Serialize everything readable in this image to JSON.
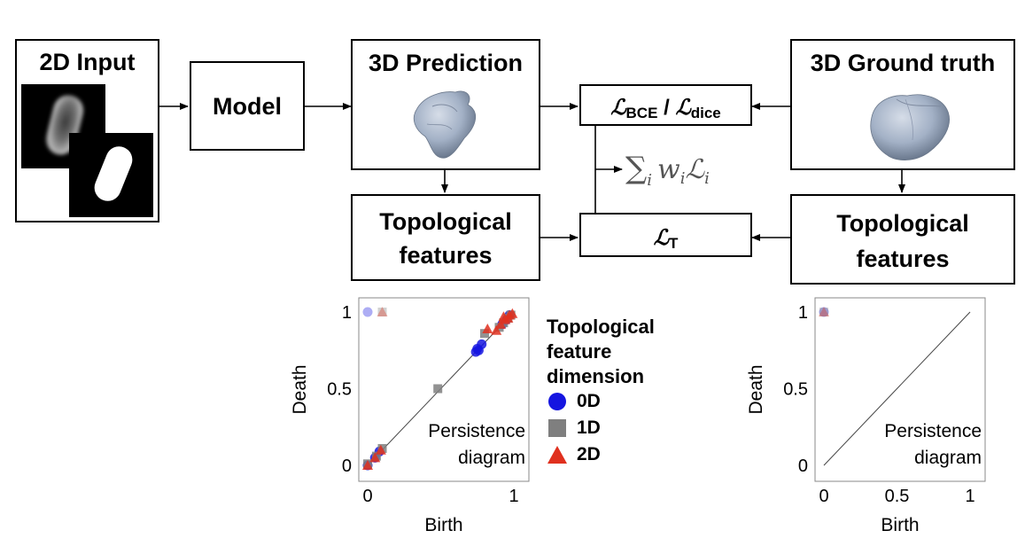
{
  "input": {
    "title": "2D Input"
  },
  "model": {
    "label": "Model"
  },
  "prediction": {
    "title": "3D Prediction"
  },
  "ground_truth": {
    "title": "3D Ground truth"
  },
  "loss_bce_dice": {
    "bce_symbol": "ℒ",
    "bce_sub": "BCE",
    "sep": " / ",
    "dice_symbol": "ℒ",
    "dice_sub": "dice"
  },
  "loss_topo": {
    "symbol": "ℒ",
    "sub": "T"
  },
  "sum_formula": {
    "sigma": "∑",
    "sub_i": "i",
    "w": "w",
    "w_sub": "i",
    "L": "ℒ",
    "L_sub": "i"
  },
  "topo_left": {
    "line1": "Topological",
    "line2": "features"
  },
  "topo_right": {
    "line1": "Topological",
    "line2": "features"
  },
  "legend": {
    "title_line1": "Topological",
    "title_line2": "feature",
    "title_line3": "dimension",
    "items": [
      {
        "label": "0D",
        "color": "#1515e0",
        "shape": "circle"
      },
      {
        "label": "1D",
        "color": "#7f7f7f",
        "shape": "square"
      },
      {
        "label": "2D",
        "color": "#e0301e",
        "shape": "triangle"
      }
    ]
  },
  "chart_data": [
    {
      "type": "scatter",
      "xlabel": "Birth",
      "ylabel": "Death",
      "annotation_line1": "Persistence",
      "annotation_line2": "diagram",
      "xticks": [
        "0",
        "1"
      ],
      "yticks": [
        "0",
        "0.5",
        "1"
      ],
      "xlim": [
        0,
        1
      ],
      "ylim": [
        0,
        1
      ],
      "diagonal": true,
      "series": [
        {
          "name": "0D",
          "color": "#1515e0",
          "shape": "circle",
          "x": [
            0.0,
            0.0,
            0.05,
            0.08,
            0.74,
            0.75,
            0.76,
            0.78,
            0.92,
            0.95,
            0.97
          ],
          "y": [
            1.0,
            0.0,
            0.05,
            0.09,
            0.74,
            0.76,
            0.75,
            0.79,
            0.92,
            0.95,
            0.98
          ]
        },
        {
          "name": "1D",
          "color": "#7f7f7f",
          "shape": "square",
          "x": [
            0.1,
            0.48,
            0.0,
            0.06,
            0.1,
            0.8,
            0.9,
            0.93,
            0.96,
            0.98
          ],
          "y": [
            1.0,
            0.5,
            0.01,
            0.06,
            0.11,
            0.86,
            0.9,
            0.93,
            0.96,
            0.98
          ]
        },
        {
          "name": "2D",
          "color": "#e0301e",
          "shape": "triangle",
          "x": [
            0.1,
            0.82,
            0.0,
            0.05,
            0.09,
            0.88,
            0.91,
            0.94,
            0.96,
            0.97,
            0.99,
            0.93
          ],
          "y": [
            1.0,
            0.89,
            0.0,
            0.05,
            0.1,
            0.88,
            0.92,
            0.95,
            0.96,
            0.98,
            0.99,
            0.97
          ]
        }
      ]
    },
    {
      "type": "scatter",
      "xlabel": "Birth",
      "ylabel": "Death",
      "annotation_line1": "Persistence",
      "annotation_line2": "diagram",
      "xticks": [
        "0",
        "0.5",
        "1"
      ],
      "yticks": [
        "0",
        "0.5",
        "1"
      ],
      "xlim": [
        0,
        1
      ],
      "ylim": [
        0,
        1
      ],
      "diagonal": true,
      "series": [
        {
          "name": "0D",
          "color": "#1515e0",
          "shape": "circle",
          "x": [
            0.0
          ],
          "y": [
            1.0
          ]
        },
        {
          "name": "1D",
          "color": "#7f7f7f",
          "shape": "square",
          "x": [
            0.0
          ],
          "y": [
            1.0
          ]
        },
        {
          "name": "2D",
          "color": "#e0301e",
          "shape": "triangle",
          "x": [
            0.0
          ],
          "y": [
            1.0
          ]
        }
      ]
    }
  ]
}
